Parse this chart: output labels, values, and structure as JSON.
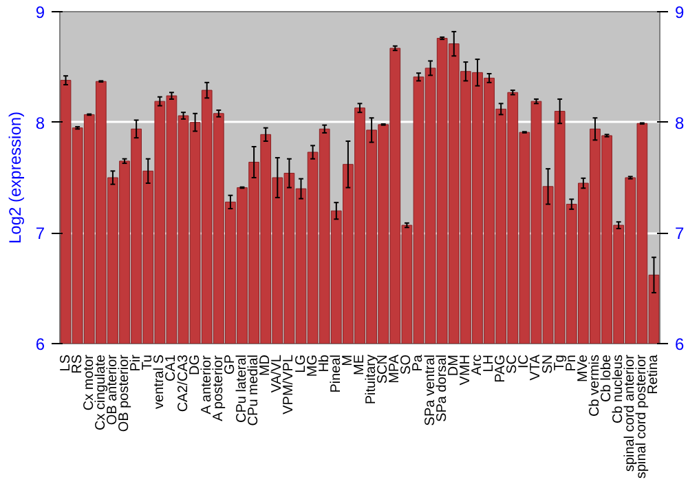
{
  "chart_data": {
    "type": "bar",
    "ylabel": "Log2 (expression)",
    "categories": [
      "LS",
      "RS",
      "Cx motor",
      "Cx cingulate",
      "OB anterior",
      "OB posterior",
      "Pir",
      "Tu",
      "ventral S",
      "CA1",
      "CA2/CA3",
      "DG",
      "A anterior",
      "A posterior",
      "GP",
      "CPu lateral",
      "CPu medial",
      "MD",
      "VA/VL",
      "VPM/VPL",
      "LG",
      "MG",
      "Hb",
      "Pineal",
      "M",
      "ME",
      "Pituitary",
      "SCN",
      "MPA",
      "SO",
      "Pa",
      "SPa ventral",
      "SPa dorsal",
      "DM",
      "VMH",
      "Arc",
      "LH",
      "PAG",
      "SC",
      "IC",
      "VTA",
      "SN",
      "Tg",
      "Pn",
      "MVe",
      "Cb vermis",
      "Cb lobe",
      "Cb nucleus",
      "spinal cord anterior",
      "spinal cord posterior",
      "Retina"
    ],
    "values": [
      8.38,
      7.95,
      8.07,
      8.37,
      7.5,
      7.65,
      7.94,
      7.56,
      8.19,
      8.24,
      8.06,
      8.0,
      8.29,
      8.08,
      7.28,
      7.41,
      7.64,
      7.89,
      7.5,
      7.54,
      7.4,
      7.73,
      7.94,
      7.2,
      7.62,
      8.13,
      7.93,
      7.98,
      8.67,
      7.07,
      8.41,
      8.49,
      8.76,
      8.71,
      8.46,
      8.45,
      8.4,
      8.12,
      8.27,
      7.91,
      8.19,
      7.42,
      8.1,
      7.26,
      7.45,
      7.94,
      7.88,
      7.07,
      7.5,
      7.99,
      6.62
    ],
    "errors": [
      0.04,
      0.01,
      0.005,
      0.005,
      0.06,
      0.02,
      0.08,
      0.11,
      0.04,
      0.03,
      0.03,
      0.08,
      0.07,
      0.03,
      0.06,
      0.005,
      0.14,
      0.06,
      0.18,
      0.13,
      0.09,
      0.06,
      0.035,
      0.075,
      0.21,
      0.04,
      0.11,
      0.005,
      0.02,
      0.02,
      0.035,
      0.065,
      0.01,
      0.11,
      0.085,
      0.12,
      0.04,
      0.05,
      0.02,
      0.005,
      0.02,
      0.16,
      0.11,
      0.045,
      0.045,
      0.1,
      0.01,
      0.03,
      0.01,
      0.005,
      0.16
    ],
    "color": "#c0393b",
    "ylim": [
      6,
      9
    ],
    "yticks": [
      6,
      7,
      8,
      9
    ],
    "y2lim": [
      6,
      9
    ],
    "y2ticks": [
      6,
      7,
      8,
      9
    ],
    "grid": "y"
  }
}
